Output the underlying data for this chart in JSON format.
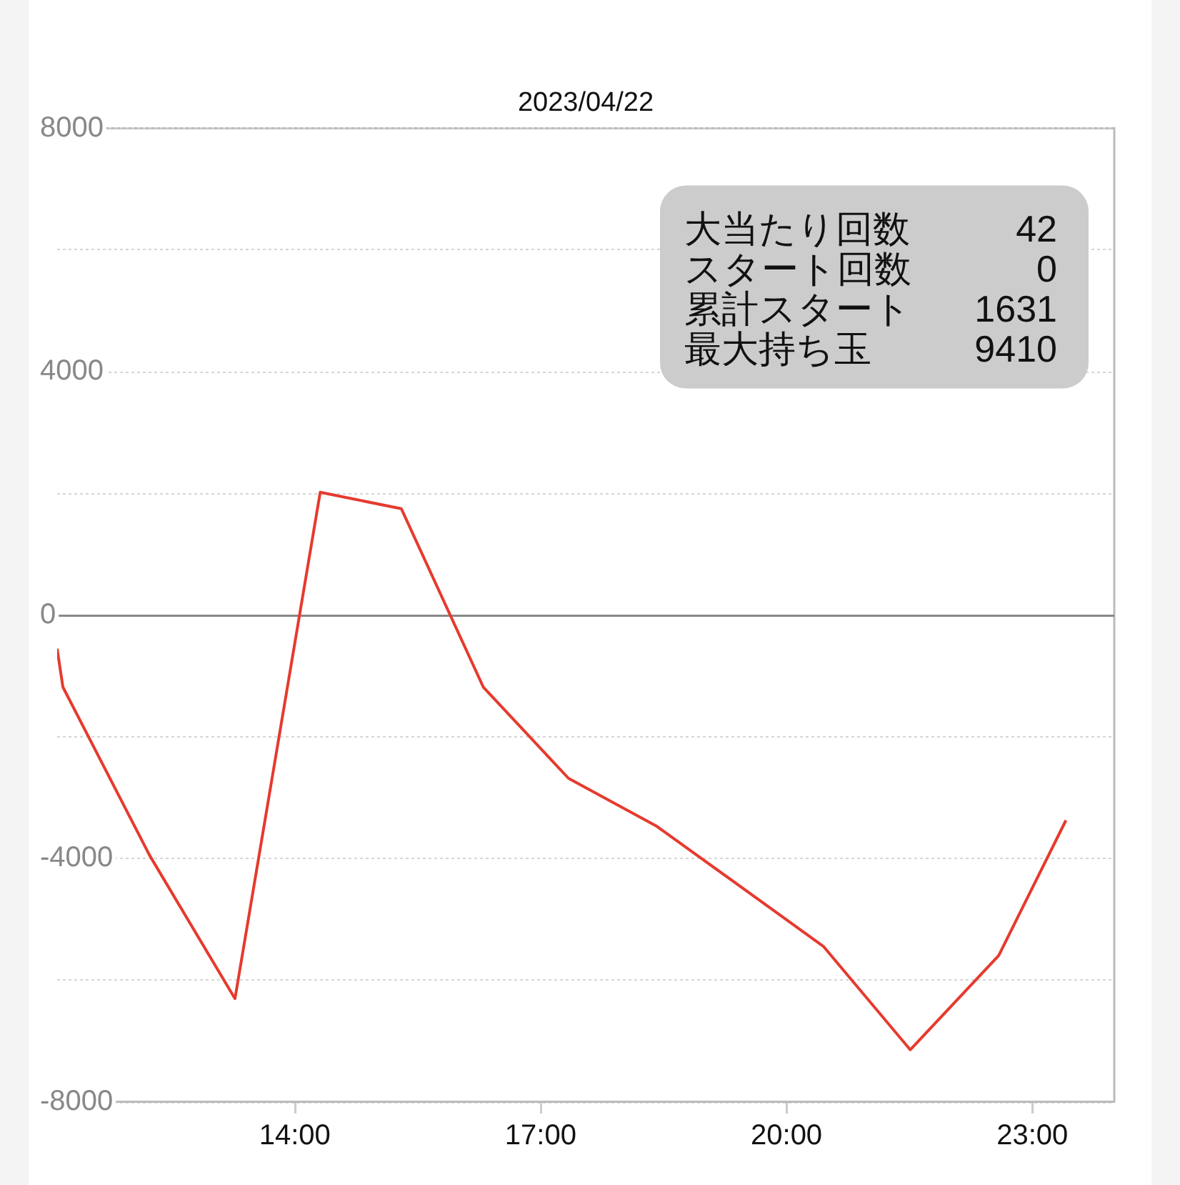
{
  "chart_data": {
    "type": "line",
    "title": "2023/04/22",
    "x": [
      11.1,
      11.17,
      12.23,
      13.27,
      14.31,
      15.3,
      16.3,
      17.34,
      18.42,
      20.45,
      21.51,
      22.59,
      23.41
    ],
    "values": [
      -550,
      -1180,
      -3950,
      -6300,
      2020,
      1750,
      -1180,
      -2680,
      -3470,
      -5440,
      -7140,
      -5590,
      -3370
    ],
    "color": "#e63a2e",
    "xlim": [
      11.1,
      24
    ],
    "xticks": [
      {
        "value": 14,
        "label": "14:00"
      },
      {
        "value": 17,
        "label": "17:00"
      },
      {
        "value": 20,
        "label": "20:00"
      },
      {
        "value": 23,
        "label": "23:00"
      }
    ],
    "ylim": [
      -8000,
      8000
    ],
    "yticks": [
      -8000,
      {
        "value": -6000,
        "label": null
      },
      -4000,
      {
        "value": -2000,
        "label": null
      },
      0,
      {
        "value": 2000,
        "label": null
      },
      4000,
      {
        "value": 6000,
        "label": null
      },
      8000
    ],
    "grid": "y",
    "annotations": [
      "大当たり回数 42",
      "スタート回数 0",
      "累計スタート 1631",
      "最大持ち玉 9410"
    ]
  }
}
